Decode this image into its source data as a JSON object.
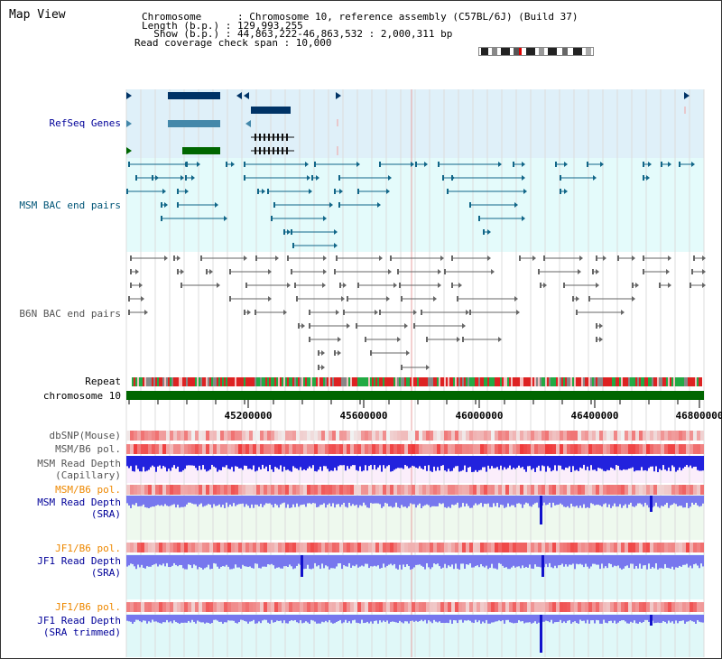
{
  "page": {
    "title": "Map View"
  },
  "info": {
    "chromosome_line": "Chromosome      : Chromosome 10, reference assembly (C57BL/6J) (Build 37)",
    "length_line": "Length (b.p.) : 129,993,255",
    "show_line": "  Show (b.p.) : 44,863,222-46,863,532 : 2,000,311 bp",
    "coverage_line": "Read coverage check span : 10,000"
  },
  "tracks": {
    "refseq": "RefSeq Genes",
    "msm_bac": "MSM BAC end pairs",
    "b6n_bac": "B6N BAC end pairs",
    "repeat": "Repeat",
    "chromosome": "chromosome 10",
    "dbsnp": "dbSNP(Mouse)",
    "msm_b6_pol_1": "MSM/B6 pol.",
    "msm_read_depth_cap_1": "MSM Read Depth",
    "msm_read_depth_cap_2": "(Capillary)",
    "msm_b6_pol_2": "MSM/B6 pol.",
    "msm_read_depth_sra_1": "MSM Read Depth",
    "msm_read_depth_sra_2": "(SRA)",
    "jf1_b6_pol_1": "JF1/B6 pol.",
    "jf1_read_depth_sra_1": "JF1 Read Depth",
    "jf1_read_depth_sra_2": "(SRA)",
    "jf1_b6_pol_2": "JF1/B6 pol.",
    "jf1_read_depth_trim_1": "JF1 Read Depth",
    "jf1_read_depth_trim_2": "(SRA trimmed)"
  },
  "axis": {
    "ticks": [
      "45200000",
      "45600000",
      "46000000",
      "46400000",
      "46800000"
    ]
  },
  "colors": {
    "refseq_label": "#000099",
    "msm_label": "#005577",
    "b6n_label": "#555555",
    "pol_label": "#ee8800",
    "depth_label": "#000099",
    "chromosome_bar": "#006600",
    "gene_dark": "#003366",
    "gene_mid": "#4488aa",
    "gene_green": "#006600",
    "msm_feature": "#116688",
    "b6n_feature": "#666666",
    "depth_blue": "#2222dd",
    "depth_light": "#7777ee"
  }
}
